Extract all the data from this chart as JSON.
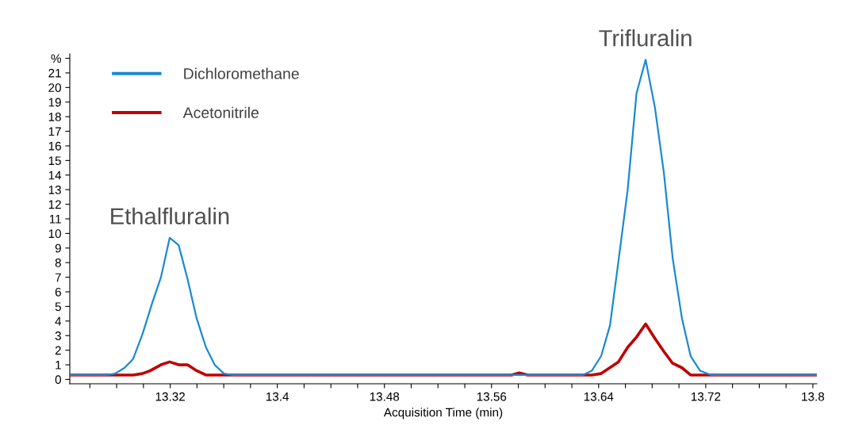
{
  "chart_data": {
    "type": "line",
    "xlabel": "Acquisition Time (min)",
    "ylabel": null,
    "xlim": [
      13.245,
      13.803
    ],
    "ylim": [
      -0.3,
      22.3
    ],
    "xticks": [
      {
        "value": 13.26,
        "label": null
      },
      {
        "value": 13.28,
        "label": null
      },
      {
        "value": 13.3,
        "label": null
      },
      {
        "value": 13.32,
        "label": "13.32"
      },
      {
        "value": 13.34,
        "label": null
      },
      {
        "value": 13.36,
        "label": null
      },
      {
        "value": 13.38,
        "label": null
      },
      {
        "value": 13.4,
        "label": "13.4"
      },
      {
        "value": 13.42,
        "label": null
      },
      {
        "value": 13.44,
        "label": null
      },
      {
        "value": 13.46,
        "label": null
      },
      {
        "value": 13.48,
        "label": "13.48"
      },
      {
        "value": 13.5,
        "label": null
      },
      {
        "value": 13.52,
        "label": null
      },
      {
        "value": 13.54,
        "label": null
      },
      {
        "value": 13.56,
        "label": "13.56"
      },
      {
        "value": 13.58,
        "label": null
      },
      {
        "value": 13.6,
        "label": null
      },
      {
        "value": 13.62,
        "label": null
      },
      {
        "value": 13.64,
        "label": "13.64"
      },
      {
        "value": 13.66,
        "label": null
      },
      {
        "value": 13.68,
        "label": null
      },
      {
        "value": 13.7,
        "label": null
      },
      {
        "value": 13.72,
        "label": "13.72"
      },
      {
        "value": 13.74,
        "label": null
      },
      {
        "value": 13.76,
        "label": null
      },
      {
        "value": 13.78,
        "label": null
      },
      {
        "value": 13.8,
        "label": "13.8"
      }
    ],
    "yticks": [
      0,
      1,
      2,
      3,
      4,
      5,
      6,
      7,
      8,
      9,
      10,
      11,
      12,
      13,
      14,
      15,
      16,
      17,
      18,
      19,
      20,
      21,
      {
        "value": 22,
        "label": "%"
      }
    ],
    "grid": false,
    "legend": "top left",
    "marker": "none",
    "line_style": "solid",
    "series": [
      {
        "name": "Dichloromethane",
        "color": "#1a8ad4",
        "x": [
          13.245,
          13.2736,
          13.2789,
          13.286,
          13.2923,
          13.2993,
          13.3068,
          13.3131,
          13.3196,
          13.3263,
          13.3329,
          13.3397,
          13.3467,
          13.3532,
          13.3601,
          13.3664,
          13.6281,
          13.635,
          13.6419,
          13.6485,
          13.6548,
          13.6617,
          13.6683,
          13.6751,
          13.6821,
          13.6888,
          13.6953,
          13.7022,
          13.7087,
          13.7157,
          13.724,
          13.803
        ],
        "values": [
          0.3,
          0.3,
          0.4,
          0.8,
          1.4,
          3.1,
          5.3,
          7.0,
          9.7,
          9.2,
          6.9,
          4.2,
          2.2,
          1.0,
          0.4,
          0.3,
          0.3,
          0.6,
          1.6,
          3.7,
          8.1,
          13.0,
          19.6,
          21.9,
          18.6,
          14.1,
          8.3,
          4.2,
          1.6,
          0.6,
          0.3,
          0.3
        ]
      },
      {
        "name": "Acetonitrile",
        "color": "#c00000",
        "x": [
          13.245,
          13.2923,
          13.2993,
          13.3052,
          13.3131,
          13.3196,
          13.3263,
          13.3329,
          13.3397,
          13.3467,
          13.3532,
          13.575,
          13.5807,
          13.587,
          13.6281,
          13.635,
          13.6419,
          13.6548,
          13.6617,
          13.6683,
          13.6751,
          13.6821,
          13.6888,
          13.6953,
          13.7022,
          13.7087,
          13.7157,
          13.803
        ],
        "values": [
          0.3,
          0.3,
          0.4,
          0.6,
          1.0,
          1.2,
          1.0,
          1.0,
          0.6,
          0.3,
          0.3,
          0.3,
          0.45,
          0.3,
          0.3,
          0.3,
          0.4,
          1.2,
          2.2,
          2.9,
          3.8,
          2.8,
          1.9,
          1.1,
          0.8,
          0.3,
          0.3,
          0.3
        ]
      }
    ],
    "annotations": [
      {
        "text": "Ethalfluralin",
        "x": 13.3196,
        "y": 9.7
      },
      {
        "text": "Trifluralin",
        "x": 13.6751,
        "y": 21.9
      }
    ]
  }
}
